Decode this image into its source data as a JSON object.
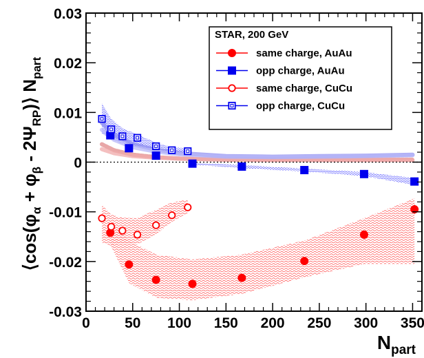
{
  "chart_data": {
    "type": "scatter",
    "x_axis": {
      "main": "N",
      "sub": "part",
      "range": [
        0,
        360
      ],
      "ticks": [
        0,
        50,
        100,
        150,
        200,
        250,
        300,
        350
      ],
      "tick_labels": [
        "0",
        "50",
        "100",
        "150",
        "200",
        "250",
        "300",
        "350"
      ]
    },
    "y_axis": {
      "label_parts": [
        "⟨cos(φ",
        "α",
        " + φ",
        "β",
        " - 2Ψ",
        "RP",
        ")⟩ N",
        "part"
      ],
      "range": [
        -0.03,
        0.03
      ],
      "ticks": [
        -0.03,
        -0.02,
        -0.01,
        0,
        0.01,
        0.02,
        0.03
      ],
      "tick_labels": [
        "-0.03",
        "-0.02",
        "-0.01",
        "0",
        "0.01",
        "0.02",
        "0.03"
      ]
    },
    "legend": {
      "title": "STAR, 200 GeV",
      "placement": "top-right",
      "entries": [
        {
          "label": "same charge, AuAu",
          "color": "#ff0000",
          "marker": "filled-circle"
        },
        {
          "label": "opp charge, AuAu",
          "color": "#0000ee",
          "marker": "filled-square"
        },
        {
          "label": "same charge, CuCu",
          "color": "#ff0000",
          "marker": "open-circle"
        },
        {
          "label": "opp charge, CuCu",
          "color": "#0000ee",
          "marker": "open-square"
        }
      ]
    },
    "series": [
      {
        "name": "same charge, AuAu",
        "color": "#ff0000",
        "marker": "filled-circle",
        "x": [
          26,
          46,
          75,
          114,
          167,
          234,
          298,
          352
        ],
        "y": [
          -0.0142,
          -0.0206,
          -0.0237,
          -0.0245,
          -0.0233,
          -0.0199,
          -0.0146,
          -0.0095
        ],
        "err": [
          0.0005,
          0.0004,
          0.0004,
          0.0004,
          0.0004,
          0.0004,
          0.0005,
          0.0009
        ]
      },
      {
        "name": "opp charge, AuAu",
        "color": "#0000ee",
        "marker": "filled-square",
        "x": [
          26,
          46,
          75,
          114,
          167,
          234,
          298,
          352
        ],
        "y": [
          0.0054,
          0.0028,
          0.0013,
          -0.0003,
          -0.0009,
          -0.0016,
          -0.0024,
          -0.0039
        ],
        "err": [
          0.0004,
          0.0003,
          0.0003,
          0.0003,
          0.0003,
          0.0003,
          0.0004,
          0.0008
        ]
      },
      {
        "name": "same charge, CuCu",
        "color": "#ff0000",
        "marker": "open-circle",
        "x": [
          17,
          27,
          39,
          55,
          75,
          92,
          109
        ],
        "y": [
          -0.0113,
          -0.013,
          -0.0138,
          -0.0146,
          -0.0127,
          -0.0107,
          -0.0091
        ],
        "err": [
          0.0008,
          0.0007,
          0.0007,
          0.0007,
          0.0006,
          0.0007,
          0.0007
        ]
      },
      {
        "name": "opp charge, CuCu",
        "color": "#0000ee",
        "marker": "open-square",
        "x": [
          17,
          27,
          39,
          55,
          75,
          92,
          109
        ],
        "y": [
          0.0087,
          0.0066,
          0.0052,
          0.0049,
          0.0032,
          0.0024,
          0.0022
        ],
        "err": [
          0.0007,
          0.0006,
          0.0006,
          0.0005,
          0.0005,
          0.0005,
          0.0006
        ]
      }
    ],
    "systematic_bands": [
      {
        "series": "same charge, AuAu",
        "color": "#ff5050",
        "x": [
          26,
          46,
          75,
          114,
          167,
          234,
          298,
          352
        ],
        "upper": [
          -0.0118,
          -0.0158,
          -0.0186,
          -0.0196,
          -0.0186,
          -0.0158,
          -0.0113,
          -0.0073
        ],
        "lower": [
          -0.0166,
          -0.0243,
          -0.0273,
          -0.0278,
          -0.0265,
          -0.0232,
          -0.0205,
          -0.0205
        ]
      },
      {
        "series": "same charge, CuCu",
        "color": "#ff5050",
        "x": [
          17,
          27,
          39,
          55,
          75,
          92,
          109
        ],
        "upper": [
          -0.0086,
          -0.0106,
          -0.0112,
          -0.0113,
          -0.0096,
          -0.0081,
          -0.0076
        ],
        "lower": [
          -0.0162,
          -0.0168,
          -0.0163,
          -0.0165,
          -0.0145,
          -0.012,
          -0.0102
        ]
      },
      {
        "series": "opp charge, AuAu",
        "color": "#3a3aff",
        "x": [
          114,
          167,
          234,
          298,
          352
        ],
        "upper": [
          -0.0001,
          -0.0006,
          -0.0013,
          -0.002,
          -0.0032
        ],
        "lower": [
          -0.0005,
          -0.0012,
          -0.0019,
          -0.0028,
          -0.0046
        ]
      },
      {
        "series": "opp charge, CuCu",
        "color": "#3a3aff",
        "x": [
          17,
          27,
          39,
          55,
          75,
          92,
          109
        ],
        "upper": [
          0.0118,
          0.0087,
          0.0068,
          0.0056,
          0.0039,
          0.003,
          0.0028
        ],
        "lower": [
          0.0058,
          0.0046,
          0.0037,
          0.0033,
          0.0026,
          0.0019,
          0.0016
        ]
      }
    ],
    "background_curves": [
      {
        "color": "#e08a8a",
        "dashed": true,
        "x": [
          17,
          30,
          50,
          75,
          100,
          150,
          200,
          250,
          300,
          350
        ],
        "y": [
          0.0036,
          0.0024,
          0.0015,
          0.001,
          0.0007,
          0.0005,
          0.0005,
          0.0005,
          0.0005,
          0.0005
        ]
      },
      {
        "color": "#f0aaaa",
        "dashed": false,
        "x": [
          17,
          30,
          50,
          75,
          100,
          150,
          200,
          250,
          300,
          350
        ],
        "y": [
          0.0026,
          0.0018,
          0.0012,
          0.0009,
          0.0007,
          0.0005,
          0.0004,
          0.0004,
          0.0004,
          0.0004
        ]
      },
      {
        "color": "#8b8bf0",
        "dashed": false,
        "x": [
          17,
          30,
          50,
          75,
          100,
          150,
          200,
          250,
          300,
          350
        ],
        "y": [
          0.0079,
          0.0055,
          0.0036,
          0.0025,
          0.0018,
          0.0012,
          0.0011,
          0.0012,
          0.0013,
          0.0015
        ]
      },
      {
        "color": "#b8b8f8",
        "dashed": false,
        "x": [
          17,
          30,
          50,
          75,
          100,
          150,
          200,
          250,
          300,
          350
        ],
        "y": [
          0.0065,
          0.0045,
          0.003,
          0.0021,
          0.0016,
          0.0011,
          0.001,
          0.0011,
          0.0012,
          0.0014
        ]
      }
    ],
    "reference_line": {
      "y": 0,
      "style": "dotted"
    }
  }
}
